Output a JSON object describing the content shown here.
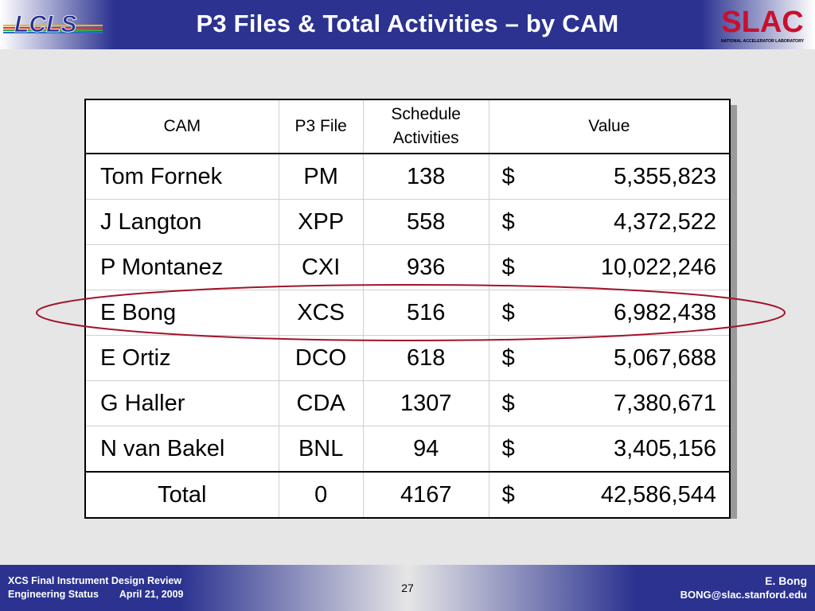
{
  "header": {
    "title": "P3 Files & Total Activities – by CAM",
    "left_logo_text": "LCLS",
    "right_logo_text": "SLAC",
    "right_logo_subtext": "NATIONAL ACCELERATOR LABORATORY"
  },
  "table": {
    "columns": [
      "CAM",
      "P3 File",
      "Schedule Activities",
      "Value"
    ],
    "rows": [
      {
        "cam": "Tom Fornek",
        "p3": "PM",
        "activities": "138",
        "currency": "$",
        "value": "5,355,823"
      },
      {
        "cam": "J Langton",
        "p3": "XPP",
        "activities": "558",
        "currency": "$",
        "value": "4,372,522"
      },
      {
        "cam": "P Montanez",
        "p3": "CXI",
        "activities": "936",
        "currency": "$",
        "value": "10,022,246"
      },
      {
        "cam": "E Bong",
        "p3": "XCS",
        "activities": "516",
        "currency": "$",
        "value": "6,982,438"
      },
      {
        "cam": "E Ortiz",
        "p3": "DCO",
        "activities": "618",
        "currency": "$",
        "value": "5,067,688"
      },
      {
        "cam": "G Haller",
        "p3": "CDA",
        "activities": "1307",
        "currency": "$",
        "value": "7,380,671"
      },
      {
        "cam": "N van Bakel",
        "p3": "BNL",
        "activities": "94",
        "currency": "$",
        "value": "3,405,156"
      }
    ],
    "total": {
      "cam": "Total",
      "p3": "0",
      "activities": "4167",
      "currency": "$",
      "value": "42,586,544"
    }
  },
  "footer": {
    "review": "XCS Final Instrument Design Review",
    "status": "Engineering Status",
    "date": "April 21, 2009",
    "page_number": "27",
    "author": "E. Bong",
    "email": "BONG@slac.stanford.edu"
  },
  "colors": {
    "brand_blue": "#2b3290",
    "highlight_ellipse": "#a0142a",
    "slac_red": "#c8102e"
  }
}
